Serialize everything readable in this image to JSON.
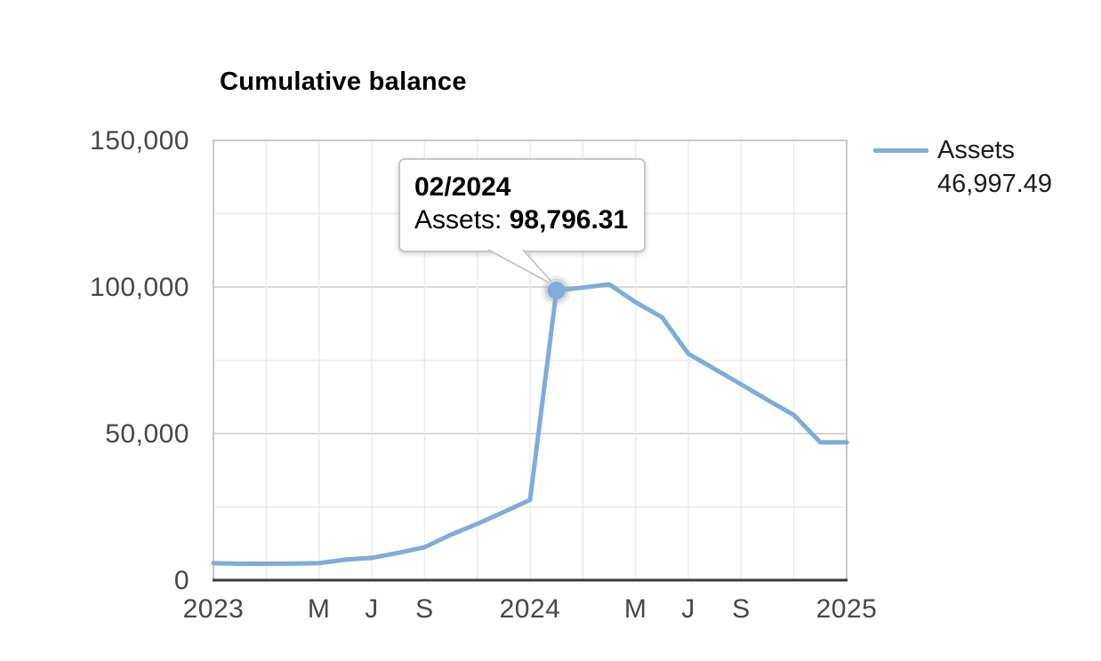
{
  "title": "Cumulative balance",
  "legend": {
    "series_label": "Assets",
    "value": "46,997.49",
    "swatch_color": "#7FACD8"
  },
  "tooltip": {
    "date_label": "02/2024",
    "series_label": "Assets:",
    "value": "98,796.31"
  },
  "colors": {
    "line": "#7FACD8",
    "grid_minor": "#ececec",
    "grid_major": "#d8d8d8",
    "plot_border": "#c8c8c8",
    "axis": "#3a3a3a",
    "tick_text": "#474747"
  },
  "chart_data": {
    "type": "line",
    "title": "Cumulative balance",
    "xlabel": "",
    "ylabel": "",
    "grid": true,
    "legend_position": "right",
    "x": [
      "01/2023",
      "02/2023",
      "03/2023",
      "04/2023",
      "05/2023",
      "06/2023",
      "07/2023",
      "08/2023",
      "09/2023",
      "10/2023",
      "11/2023",
      "12/2023",
      "01/2024",
      "02/2024",
      "03/2024",
      "04/2024",
      "05/2024",
      "06/2024",
      "07/2024",
      "08/2024",
      "09/2024",
      "10/2024",
      "11/2024",
      "12/2024",
      "01/2025"
    ],
    "series": [
      {
        "name": "Assets",
        "color": "#7FACD8",
        "values": [
          5800,
          5600,
          5600,
          5650,
          5800,
          7000,
          7600,
          9300,
          11200,
          15500,
          19200,
          23200,
          27400,
          98796.31,
          99800,
          100900,
          94800,
          89700,
          77200,
          72000,
          66800,
          61500,
          56300,
          47000,
          46997.49
        ]
      }
    ],
    "ylim": [
      0,
      150000
    ],
    "y_major_ticks": [
      {
        "value": 0,
        "label": "0"
      },
      {
        "value": 50000,
        "label": "50,000"
      },
      {
        "value": 100000,
        "label": "100,000"
      },
      {
        "value": 150000,
        "label": "150,000"
      }
    ],
    "y_minor_step": 25000,
    "x_gridline_step": 2,
    "x_tick_labels": [
      {
        "index": 0,
        "label": "2023"
      },
      {
        "index": 4,
        "label": "M"
      },
      {
        "index": 6,
        "label": "J"
      },
      {
        "index": 8,
        "label": "S"
      },
      {
        "index": 12,
        "label": "2024"
      },
      {
        "index": 16,
        "label": "M"
      },
      {
        "index": 18,
        "label": "J"
      },
      {
        "index": 20,
        "label": "S"
      },
      {
        "index": 24,
        "label": "2025"
      }
    ],
    "highlight": {
      "index": 13,
      "label": "02/2024",
      "series": "Assets",
      "value": 98796.31
    },
    "latest_value": 46997.49
  }
}
